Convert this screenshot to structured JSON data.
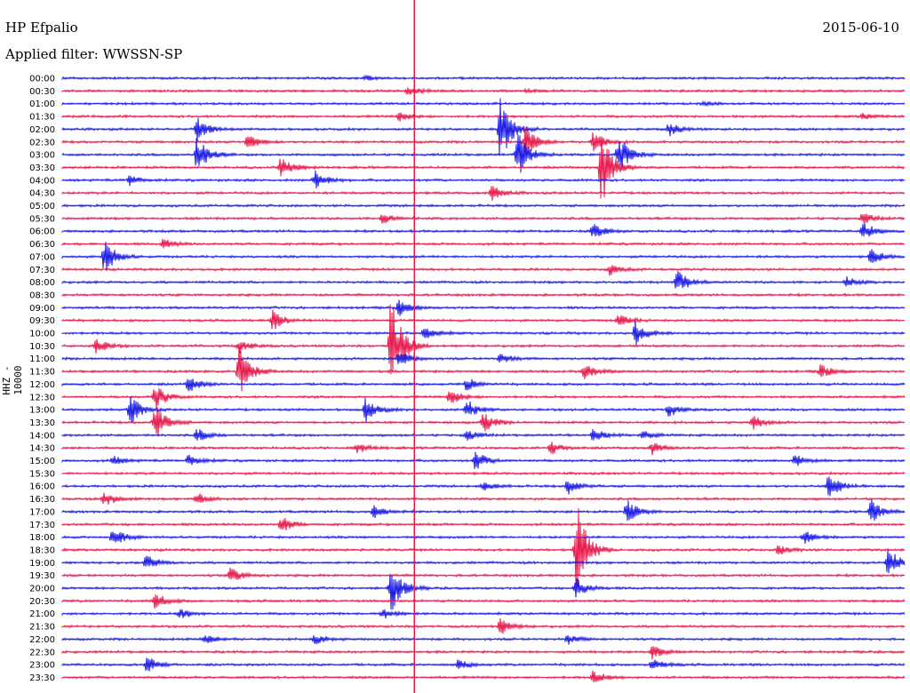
{
  "header": {
    "station": "HP Efpalio",
    "date": "2015-06-10",
    "filter": "Applied filter: WWSSN-SP",
    "channel": "HHZ - 10000"
  },
  "colors": {
    "blue": "#1a1ae6",
    "red": "#e6194b",
    "marker": "#e6194b"
  },
  "chart_data": {
    "type": "line",
    "title": "HP Efpalio",
    "ylabel": "HHZ - 10000",
    "rows": [
      "00:00",
      "00:30",
      "01:00",
      "01:30",
      "02:00",
      "02:30",
      "03:00",
      "03:30",
      "04:00",
      "04:30",
      "05:00",
      "05:30",
      "06:00",
      "06:30",
      "07:00",
      "07:30",
      "08:00",
      "08:30",
      "09:00",
      "09:30",
      "10:00",
      "10:30",
      "11:00",
      "11:30",
      "12:00",
      "12:30",
      "13:00",
      "13:30",
      "14:00",
      "14:30",
      "15:00",
      "15:30",
      "16:00",
      "16:30",
      "17:00",
      "17:30",
      "18:00",
      "18:30",
      "19:00",
      "19:30",
      "20:00",
      "20:30",
      "21:00",
      "21:30",
      "22:00",
      "22:30",
      "23:00",
      "23:30"
    ],
    "row_colors": [
      "blue",
      "red"
    ],
    "events": [
      [
        0,
        0.36,
        3
      ],
      [
        1,
        0.41,
        5
      ],
      [
        1,
        0.55,
        2
      ],
      [
        2,
        0.76,
        2
      ],
      [
        3,
        0.4,
        6
      ],
      [
        3,
        0.95,
        4
      ],
      [
        4,
        0.16,
        14
      ],
      [
        4,
        0.52,
        40
      ],
      [
        4,
        0.72,
        8
      ],
      [
        5,
        0.22,
        10
      ],
      [
        5,
        0.55,
        18
      ],
      [
        5,
        0.63,
        12
      ],
      [
        6,
        0.16,
        22
      ],
      [
        6,
        0.54,
        30
      ],
      [
        6,
        0.66,
        25
      ],
      [
        7,
        0.26,
        14
      ],
      [
        7,
        0.64,
        48
      ],
      [
        8,
        0.3,
        12
      ],
      [
        8,
        0.08,
        6
      ],
      [
        9,
        0.51,
        8
      ],
      [
        11,
        0.38,
        6
      ],
      [
        11,
        0.95,
        7
      ],
      [
        12,
        0.63,
        10
      ],
      [
        12,
        0.95,
        12
      ],
      [
        13,
        0.12,
        6
      ],
      [
        14,
        0.05,
        22
      ],
      [
        14,
        0.96,
        10
      ],
      [
        15,
        0.65,
        6
      ],
      [
        16,
        0.73,
        14
      ],
      [
        16,
        0.93,
        6
      ],
      [
        18,
        0.4,
        10
      ],
      [
        19,
        0.25,
        12
      ],
      [
        19,
        0.66,
        8
      ],
      [
        20,
        0.43,
        8
      ],
      [
        20,
        0.68,
        14
      ],
      [
        21,
        0.04,
        10
      ],
      [
        21,
        0.39,
        60
      ],
      [
        21,
        0.21,
        8
      ],
      [
        22,
        0.4,
        10
      ],
      [
        22,
        0.52,
        6
      ],
      [
        23,
        0.21,
        30
      ],
      [
        23,
        0.62,
        10
      ],
      [
        23,
        0.9,
        8
      ],
      [
        24,
        0.15,
        10
      ],
      [
        24,
        0.48,
        8
      ],
      [
        25,
        0.11,
        16
      ],
      [
        25,
        0.46,
        10
      ],
      [
        26,
        0.08,
        18
      ],
      [
        26,
        0.36,
        14
      ],
      [
        26,
        0.48,
        12
      ],
      [
        26,
        0.72,
        8
      ],
      [
        27,
        0.11,
        22
      ],
      [
        27,
        0.5,
        12
      ],
      [
        27,
        0.82,
        8
      ],
      [
        28,
        0.16,
        8
      ],
      [
        28,
        0.48,
        6
      ],
      [
        28,
        0.63,
        8
      ],
      [
        28,
        0.69,
        6
      ],
      [
        29,
        0.35,
        6
      ],
      [
        29,
        0.58,
        8
      ],
      [
        29,
        0.7,
        8
      ],
      [
        30,
        0.06,
        6
      ],
      [
        30,
        0.15,
        8
      ],
      [
        30,
        0.49,
        12
      ],
      [
        30,
        0.87,
        8
      ],
      [
        32,
        0.5,
        6
      ],
      [
        32,
        0.6,
        10
      ],
      [
        32,
        0.91,
        16
      ],
      [
        33,
        0.05,
        10
      ],
      [
        33,
        0.16,
        8
      ],
      [
        34,
        0.37,
        8
      ],
      [
        34,
        0.67,
        14
      ],
      [
        34,
        0.96,
        14
      ],
      [
        35,
        0.26,
        10
      ],
      [
        36,
        0.06,
        12
      ],
      [
        36,
        0.88,
        8
      ],
      [
        37,
        0.61,
        60
      ],
      [
        37,
        0.85,
        6
      ],
      [
        38,
        0.1,
        10
      ],
      [
        38,
        0.98,
        18
      ],
      [
        39,
        0.2,
        10
      ],
      [
        40,
        0.39,
        30
      ],
      [
        40,
        0.61,
        12
      ],
      [
        41,
        0.11,
        10
      ],
      [
        42,
        0.14,
        6
      ],
      [
        42,
        0.38,
        6
      ],
      [
        43,
        0.52,
        10
      ],
      [
        44,
        0.17,
        6
      ],
      [
        44,
        0.3,
        6
      ],
      [
        44,
        0.6,
        6
      ],
      [
        45,
        0.7,
        8
      ],
      [
        46,
        0.1,
        10
      ],
      [
        46,
        0.47,
        6
      ],
      [
        46,
        0.7,
        8
      ],
      [
        47,
        0.63,
        8
      ]
    ],
    "markers": [
      {
        "x_fraction": 0.418,
        "color": "red"
      }
    ]
  }
}
